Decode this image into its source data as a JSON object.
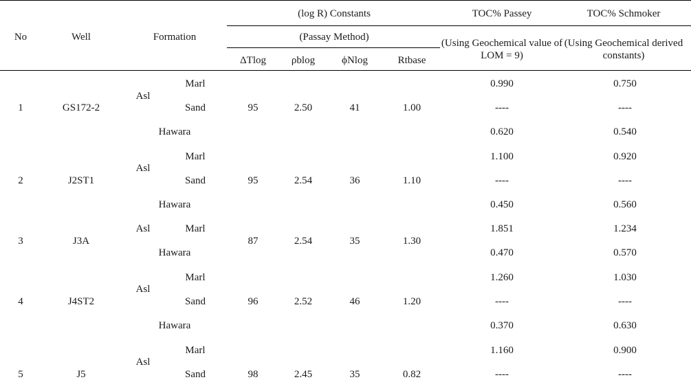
{
  "headers": {
    "no": "No",
    "well": "Well",
    "formation": "Formation",
    "constants": "(log R) Constants",
    "passay_method": "(Passay Method)",
    "dtlog": "ΔTlog",
    "pblog": "ρblog",
    "phinlog": "ϕNlog",
    "rtbase": "Rtbase",
    "toc_passey": "TOC% Passey",
    "toc_passey_sub": "(Using Geochemical value of LOM = 9)",
    "toc_schmoker": "TOC% Schmoker",
    "toc_schmoker_sub": "(Using Geochemical derived constants)"
  },
  "rows": [
    {
      "no": "1",
      "well": "GS172-2",
      "asl": "Asl",
      "marl": "Marl",
      "sand": "Sand",
      "hawara": "Hawara",
      "dtlog": "95",
      "pblog": "2.50",
      "phinlog": "41",
      "rtbase": "1.00",
      "passey": [
        "0.990",
        "----",
        "0.620"
      ],
      "schmoker": [
        "0.750",
        "----",
        "0.540"
      ]
    },
    {
      "no": "2",
      "well": "J2ST1",
      "asl": "Asl",
      "marl": "Marl",
      "sand": "Sand",
      "hawara": "Hawara",
      "dtlog": "95",
      "pblog": "2.54",
      "phinlog": "36",
      "rtbase": "1.10",
      "passey": [
        "1.100",
        "----",
        "0.450"
      ],
      "schmoker": [
        "0.920",
        "----",
        "0.560"
      ]
    },
    {
      "no": "3",
      "well": "J3A",
      "asl": "Asl",
      "marl": "Marl",
      "hawara": "Hawara",
      "dtlog": "87",
      "pblog": "2.54",
      "phinlog": "35",
      "rtbase": "1.30",
      "passey": [
        "1.851",
        "0.470"
      ],
      "schmoker": [
        "1.234",
        "0.570"
      ]
    },
    {
      "no": "4",
      "well": "J4ST2",
      "asl": "Asl",
      "marl": "Marl",
      "sand": "Sand",
      "hawara": "Hawara",
      "dtlog": "96",
      "pblog": "2.52",
      "phinlog": "46",
      "rtbase": "1.20",
      "passey": [
        "1.260",
        "----",
        "0.370"
      ],
      "schmoker": [
        "1.030",
        "----",
        "0.630"
      ]
    },
    {
      "no": "5",
      "well": "J5",
      "asl": "Asl",
      "marl": "Marl",
      "sand": "Sand",
      "dtlog": "98",
      "pblog": "2.45",
      "phinlog": "35",
      "rtbase": "0.82",
      "passey": [
        "1.160",
        "----"
      ],
      "schmoker": [
        "0.900",
        "----"
      ]
    }
  ]
}
